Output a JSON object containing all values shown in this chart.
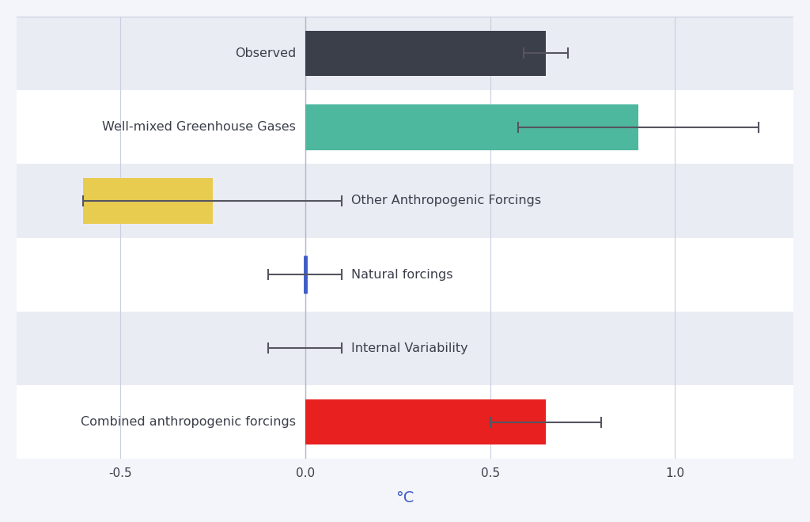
{
  "categories": [
    "Observed",
    "Well-mixed Greenhouse Gases",
    "Other Anthropogenic Forcings",
    "Natural forcings",
    "Internal Variability",
    "Combined anthropogenic forcings"
  ],
  "bar_lefts": [
    0.0,
    0.0,
    -0.6,
    0.0,
    0.0,
    0.0
  ],
  "bar_widths": [
    0.65,
    0.9,
    0.35,
    0.0,
    0.0,
    0.65
  ],
  "bar_colors": [
    "#3b3f4a",
    "#4db89e",
    "#e8cc50",
    "#3d5cc7",
    "#aaaaaa",
    "#e82020"
  ],
  "error_centers": [
    0.65,
    0.9,
    -0.25,
    0.0,
    0.0,
    0.65
  ],
  "error_bars": [
    {
      "low": 0.6,
      "high": 0.72
    },
    {
      "low": 0.5,
      "high": 1.15
    },
    {
      "low": -0.6,
      "high": 0.1
    },
    {
      "low": -0.1,
      "high": 0.1
    },
    {
      "low": -0.1,
      "high": 0.1
    },
    {
      "low": 0.5,
      "high": 0.8
    }
  ],
  "label_side": [
    "left",
    "left",
    "right",
    "right",
    "right",
    "left"
  ],
  "row_bg_colors": [
    "#eaecf4",
    "#ffffff",
    "#eaecf4",
    "#ffffff",
    "#eaecf4",
    "#ffffff"
  ],
  "xlim": [
    -0.78,
    1.32
  ],
  "xlabel": "°C",
  "xticks": [
    -0.5,
    0.0,
    0.5,
    1.0
  ],
  "xtick_labels": [
    "-0.5",
    "0.0",
    "0.5",
    "1.0"
  ],
  "bar_height": 0.62,
  "figsize": [
    10.24,
    6.6
  ],
  "dpi": 100,
  "background_color": "#f4f5fa",
  "axis_bg_color": "#f4f5fa",
  "zero_line_color": "#b0b8cc",
  "grid_color": "#c8cede",
  "xlabel_color": "#3d5cc7",
  "tick_label_color": "#3b3f4a",
  "label_fontsize": 11.5,
  "xlabel_fontsize": 14,
  "xtick_fontsize": 11,
  "natural_bar_color": "#3d5cc7"
}
